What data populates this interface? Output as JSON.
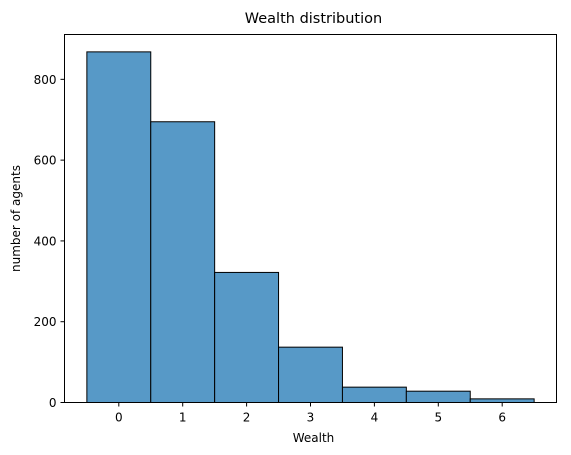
{
  "chart_data": {
    "type": "bar",
    "title": "Wealth distribution",
    "xlabel": "Wealth",
    "ylabel": "number of agents",
    "categories": [
      "0",
      "1",
      "2",
      "3",
      "4",
      "5",
      "6"
    ],
    "values": [
      868,
      695,
      322,
      137,
      38,
      28,
      9
    ],
    "xlim": [
      -0.85,
      6.85
    ],
    "ylim": [
      0,
      911
    ],
    "x_ticks": [
      0,
      1,
      2,
      3,
      4,
      5,
      6
    ],
    "y_ticks": [
      0,
      200,
      400,
      600,
      800
    ],
    "bar_color": "#5799c7",
    "edge_color": "#000000",
    "grid": false,
    "legend": "none"
  }
}
